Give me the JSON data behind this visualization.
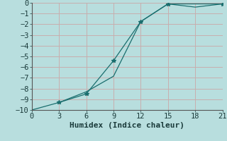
{
  "xlabel": "Humidex (Indice chaleur)",
  "bg_color": "#b8dede",
  "grid_color": "#c8aeae",
  "line_color": "#1a6e6e",
  "line1_x": [
    0,
    3,
    6,
    9,
    12,
    15,
    18,
    21
  ],
  "line1_y": [
    -10.0,
    -9.3,
    -8.3,
    -6.85,
    -1.75,
    -0.1,
    -0.4,
    -0.1
  ],
  "line2_x": [
    3,
    6,
    9,
    12,
    15,
    21
  ],
  "line2_y": [
    -9.3,
    -8.5,
    -5.4,
    -1.75,
    -0.1,
    -0.1
  ],
  "xlim": [
    0,
    21
  ],
  "ylim": [
    -10,
    0
  ],
  "xticks": [
    0,
    3,
    6,
    9,
    12,
    15,
    18,
    21
  ],
  "yticks": [
    0,
    -1,
    -2,
    -3,
    -4,
    -5,
    -6,
    -7,
    -8,
    -9,
    -10
  ],
  "tick_font_size": 7.5,
  "label_font_size": 8,
  "marker": "*",
  "markersize": 4,
  "linewidth": 0.9
}
